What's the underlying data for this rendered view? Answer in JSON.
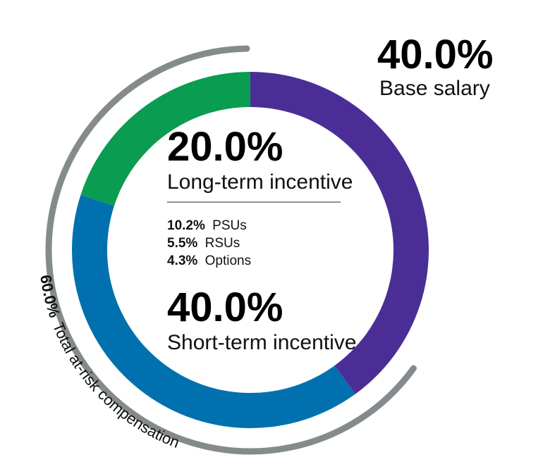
{
  "chart_data": {
    "type": "pie",
    "style": "donut",
    "slices": [
      {
        "label": "Base salary",
        "value": 40.0,
        "value_label": "40.0%",
        "color": "#4a2e96"
      },
      {
        "label": "Short-term incentive",
        "value": 40.0,
        "value_label": "40.0%",
        "color": "#0071ae"
      },
      {
        "label": "Long-term incentive",
        "value": 20.0,
        "value_label": "20.0%",
        "color": "#0a9c50"
      }
    ],
    "long_term_breakdown": [
      {
        "pct": "10.2%",
        "label": "PSUs"
      },
      {
        "pct": "5.5%",
        "label": "RSUs"
      },
      {
        "pct": "4.3%",
        "label": "Options"
      }
    ],
    "at_risk": {
      "pct": "60.0%",
      "label": "Total at-risk compensation",
      "color": "#858b8d"
    }
  }
}
